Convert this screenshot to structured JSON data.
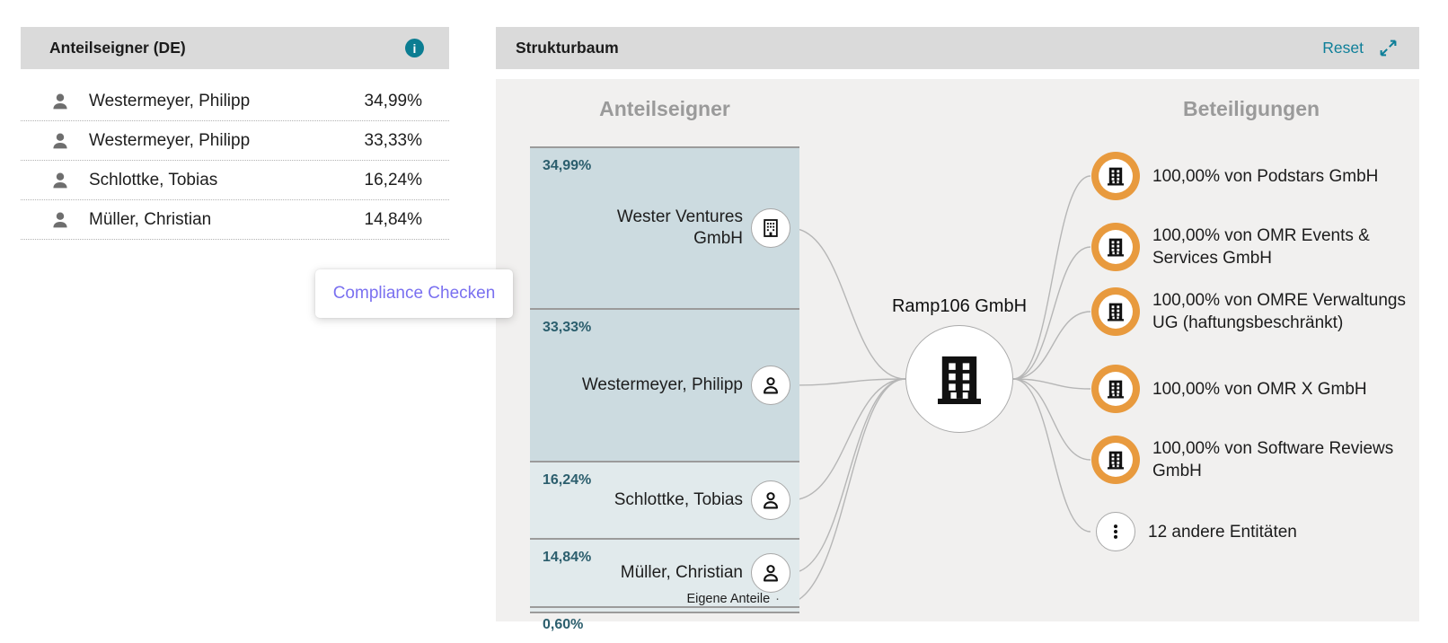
{
  "shareholders_panel": {
    "title": "Anteilseigner (DE)",
    "rows": [
      {
        "name": "Westermeyer, Philipp",
        "share": "34,99%"
      },
      {
        "name": "Westermeyer, Philipp",
        "share": "33,33%"
      },
      {
        "name": "Schlottke, Tobias",
        "share": "16,24%"
      },
      {
        "name": "Müller, Christian",
        "share": "14,84%"
      }
    ]
  },
  "compliance_button": {
    "label": "Compliance Checken"
  },
  "structure_panel": {
    "title": "Strukturbaum",
    "reset_label": "Reset",
    "columns": {
      "left": "Anteilseigner",
      "right": "Beteiligungen"
    },
    "root": {
      "name": "Ramp106 GmbH"
    },
    "shareholder_segments": [
      {
        "percent_label": "34,99%",
        "value": 34.99,
        "lines": [
          "Wester Ventures",
          "GmbH"
        ],
        "icon": "company-outline"
      },
      {
        "percent_label": "33,33%",
        "value": 33.33,
        "lines": [
          "Westermeyer, Philipp"
        ],
        "icon": "person-outline"
      },
      {
        "percent_label": "16,24%",
        "value": 16.24,
        "lines": [
          "Schlottke, Tobias"
        ],
        "icon": "person-outline"
      },
      {
        "percent_label": "14,84%",
        "value": 14.84,
        "lines": [
          "Müller, Christian"
        ],
        "icon": "person-outline"
      },
      {
        "percent_label": "0,60%",
        "value": 0.6,
        "lines": [
          "Eigene Anteile"
        ],
        "icon": "none",
        "thin": true
      }
    ],
    "holdings": [
      {
        "lines": [
          "100,00% von Podstars GmbH"
        ],
        "icon": "company"
      },
      {
        "lines": [
          "100,00% von OMR Events &",
          "Services GmbH"
        ],
        "icon": "company"
      },
      {
        "lines": [
          "100,00% von OMRE Verwaltungs",
          "UG (haftungsbeschränkt)"
        ],
        "icon": "company"
      },
      {
        "lines": [
          "100,00% von OMR X GmbH"
        ],
        "icon": "company"
      },
      {
        "lines": [
          "100,00% von Software Reviews",
          "GmbH"
        ],
        "icon": "company"
      },
      {
        "lines": [
          "12 andere Entitäten"
        ],
        "icon": "more"
      }
    ],
    "colors": {
      "accent_teal": "#0e7f99",
      "info_icon": "#0b7d92",
      "orange_ring": "#e89a3e",
      "segment_dark": "#ccdbe0",
      "segment_light": "#e1eaec",
      "percent_text": "#2b5e6d",
      "connector": "#b6b6b6",
      "compliance_text": "#7a70f0",
      "header_bg": "#dadada",
      "tree_bg": "#f1f0ef"
    }
  }
}
